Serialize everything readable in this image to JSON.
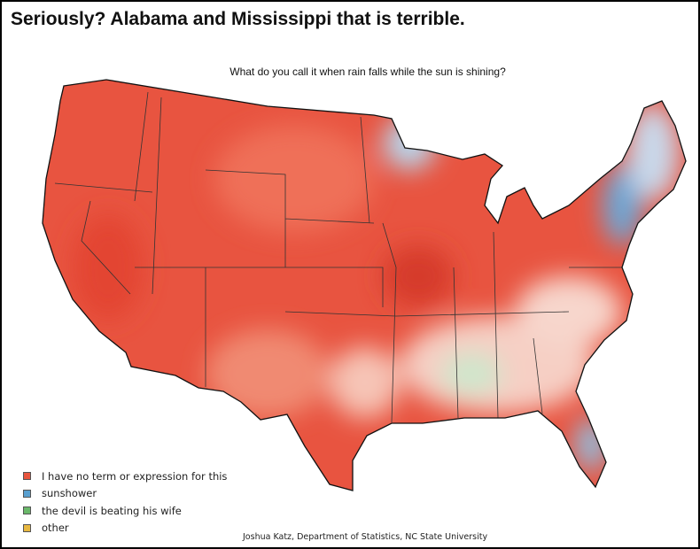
{
  "title": "Seriously? Alabama and Mississippi that is terrible.",
  "map": {
    "question": "What do you call it when rain falls while the sun is shining?",
    "legend": [
      {
        "label": "I have no term or expression for this",
        "color": "#e8553e"
      },
      {
        "label": "sunshower",
        "color": "#5aa0d0"
      },
      {
        "label": "the devil is beating his wife",
        "color": "#6ab86a"
      },
      {
        "label": "other",
        "color": "#e8b840"
      }
    ],
    "credit": "Joshua Katz, Department of Statistics, NC State University"
  }
}
